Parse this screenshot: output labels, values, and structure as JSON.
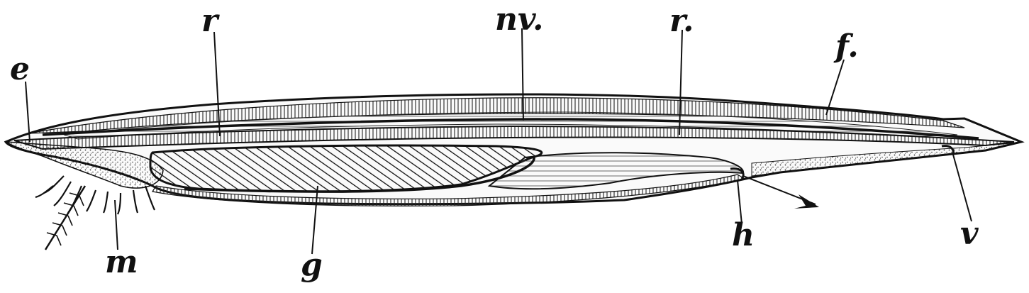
{
  "figure": {
    "labels": {
      "e": "e",
      "r_left": "r",
      "nv": "nv.",
      "r_right": "r.",
      "f": "f.",
      "m": "m",
      "g": "g",
      "h": "h",
      "v": "v"
    },
    "colors": {
      "ink": "#111111",
      "paper": "#ffffff",
      "stipple": "#333333"
    }
  }
}
